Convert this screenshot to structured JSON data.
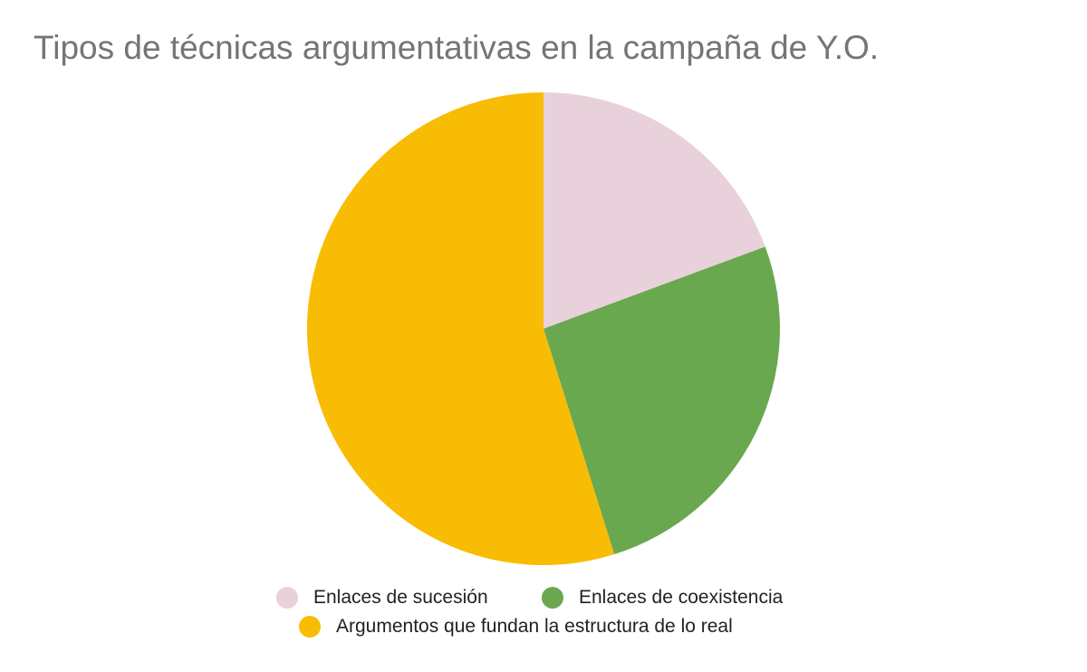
{
  "title": "Tipos de técnicas argumentativas en la campaña de Y.O.",
  "chart_data": {
    "type": "pie",
    "title": "Tipos de técnicas argumentativas en la campaña de Y.O.",
    "categories": [
      "Enlaces de sucesión",
      "Enlaces de coexistencia",
      "Argumentos que fundan la estructura de lo real"
    ],
    "values": [
      6,
      8,
      17
    ],
    "percentages": [
      19.4,
      25.8,
      54.8
    ],
    "colors": [
      "#E9D1DC",
      "#6AA84F",
      "#F9BC04"
    ],
    "start_angle_deg": 0,
    "direction": "clockwise",
    "data_labels": false,
    "legend_position": "bottom"
  },
  "legend": {
    "items": [
      {
        "label": "Enlaces de sucesión",
        "color": "#E9D1DC"
      },
      {
        "label": "Enlaces de coexistencia",
        "color": "#6AA84F"
      },
      {
        "label": "Argumentos que fundan la estructura de lo real",
        "color": "#F9BC04"
      }
    ]
  }
}
